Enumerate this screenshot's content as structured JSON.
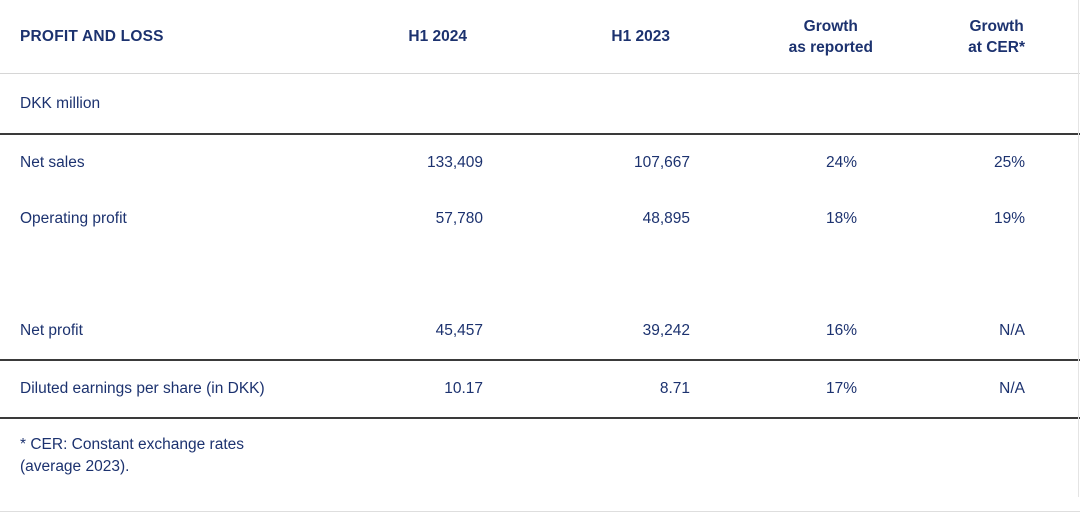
{
  "colors": {
    "text_navy": "#1c326f",
    "rule_dark": "#3a3a3a",
    "rule_light": "#d6d6d6",
    "page_edge": "#e4e4e4"
  },
  "table": {
    "title": "PROFIT AND LOSS",
    "unit_label": "DKK million",
    "columns": [
      {
        "lines": [
          "H1 2024"
        ]
      },
      {
        "lines": [
          "H1 2023"
        ]
      },
      {
        "lines": [
          "Growth",
          "as reported"
        ]
      },
      {
        "lines": [
          "Growth",
          "at CER*"
        ]
      }
    ],
    "rows": [
      {
        "label": "Net sales",
        "values": [
          "133,409",
          "107,667",
          "24%",
          "25%"
        ]
      },
      {
        "label": "Operating profit",
        "values": [
          "57,780",
          "48,895",
          "18%",
          "19%"
        ]
      },
      {
        "label": "Net profit",
        "values": [
          "45,457",
          "39,242",
          "16%",
          "N/A"
        ]
      },
      {
        "label": "Diluted earnings per share (in DKK)",
        "values": [
          "10.17",
          "8.71",
          "17%",
          "N/A"
        ]
      }
    ],
    "footnote": {
      "line1": "* CER: Constant exchange rates",
      "line2": "(average 2023)."
    }
  }
}
